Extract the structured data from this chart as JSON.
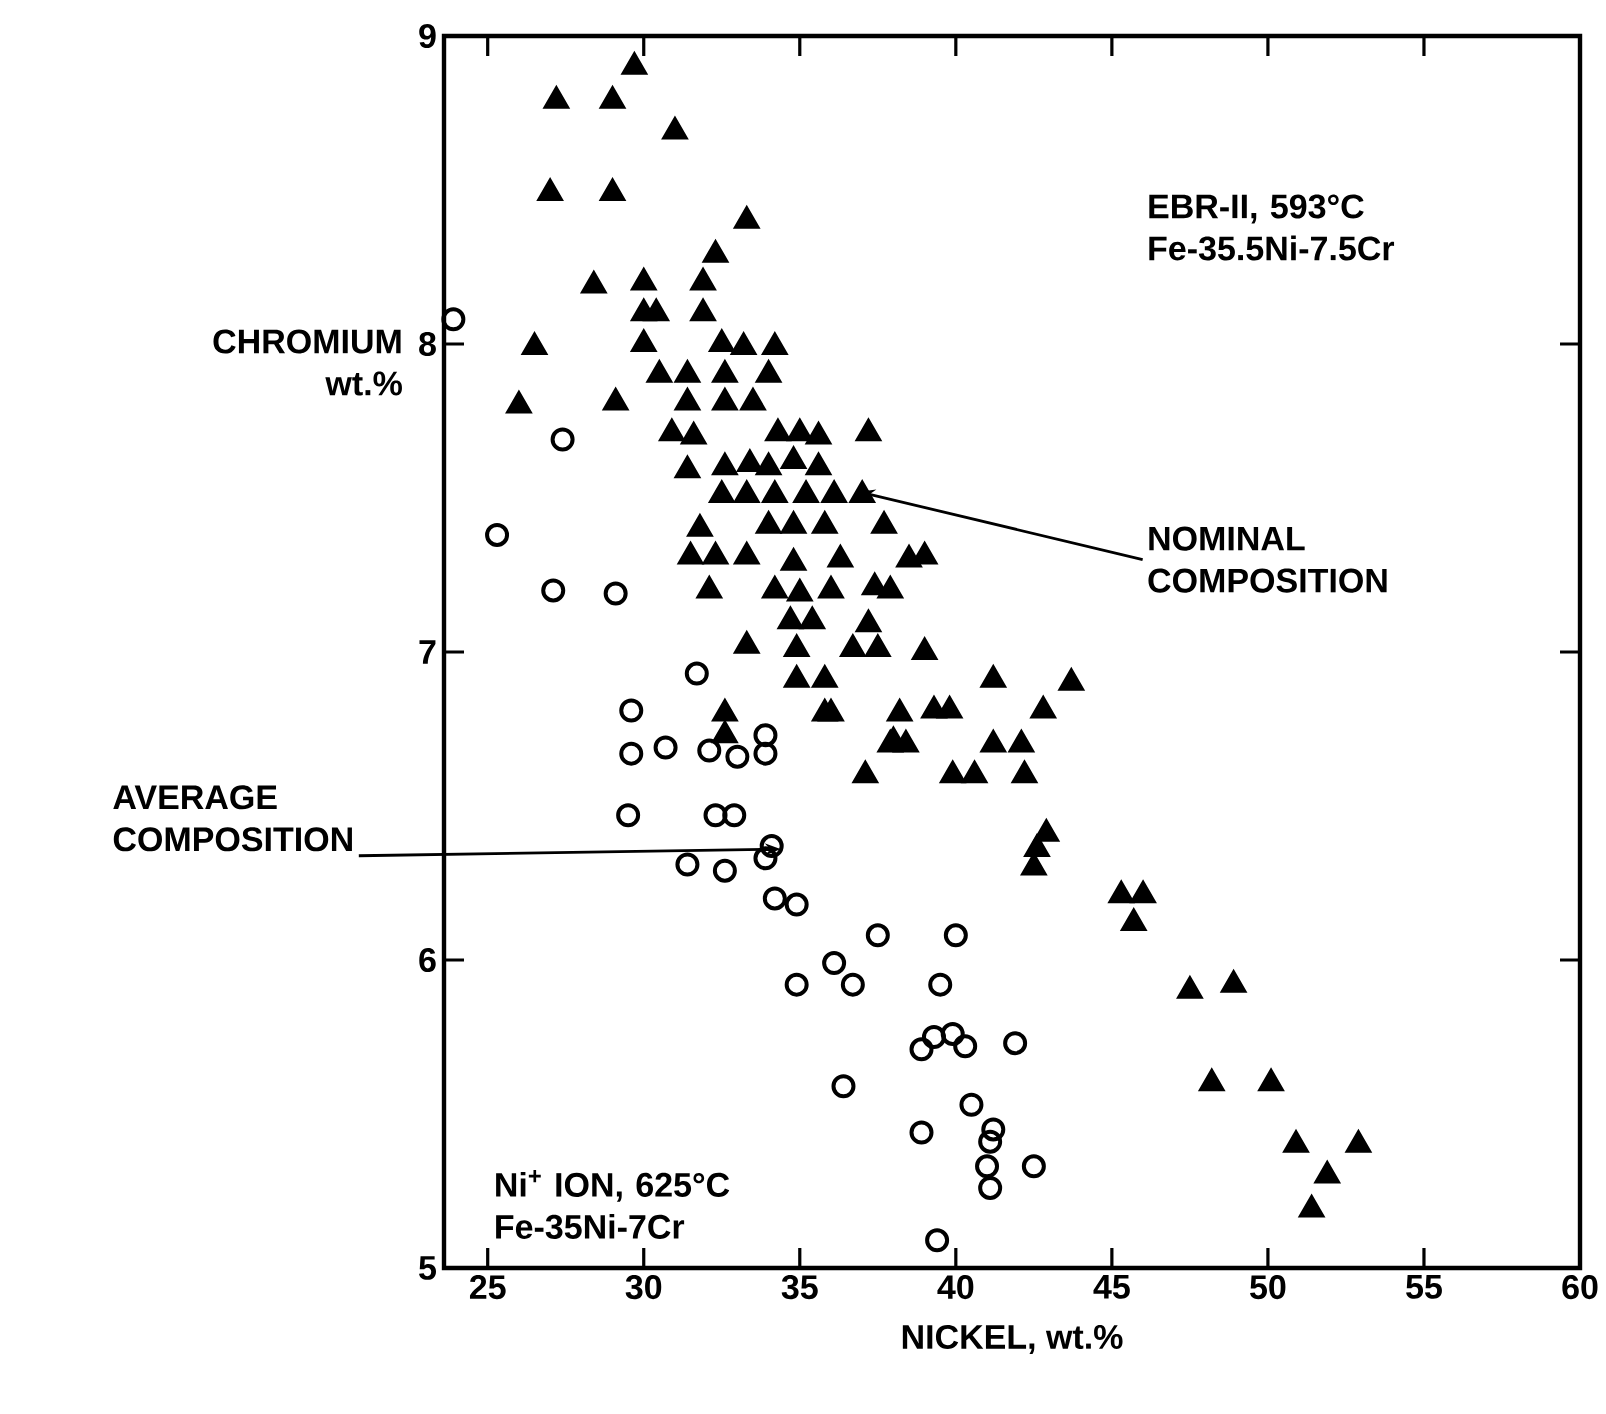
{
  "chart_data": {
    "type": "scatter",
    "xlabel": "NICKEL, wt.%",
    "ylabel": "CHROMIUM wt.%",
    "xlim": [
      23.6,
      60
    ],
    "ylim": [
      5,
      9
    ],
    "xticks": [
      25,
      30,
      35,
      40,
      45,
      50,
      55,
      60
    ],
    "yticks": [
      5,
      6,
      7,
      8,
      9
    ],
    "grid": false,
    "annotations": [
      "EBR-II, 593°C\nFe-35.5Ni-7.5Cr",
      {
        "text": "NOMINAL COMPOSITION",
        "x": 36.9,
        "y": 7.52
      },
      {
        "text": "AVERAGE COMPOSITION",
        "x": 34.4,
        "y": 6.36
      },
      "Ni$^{+}$ ION, 625°C\nFe-35Ni-7Cr"
    ],
    "series": [
      {
        "color": "#000000",
        "marker": "triangle",
        "x": [
          29.7,
          27.2,
          29.0,
          31.0,
          27.0,
          29.0,
          33.3,
          32.3,
          28.4,
          30.0,
          31.9,
          30.0,
          30.4,
          31.9,
          26.5,
          30.0,
          32.5,
          33.2,
          34.2,
          30.5,
          31.4,
          32.6,
          34.0,
          26.0,
          29.1,
          31.4,
          32.6,
          33.5,
          30.9,
          31.6,
          34.3,
          35.0,
          35.6,
          37.2,
          31.4,
          32.6,
          33.4,
          34.0,
          34.8,
          35.6,
          32.5,
          33.3,
          34.2,
          35.2,
          36.1,
          37.0,
          31.8,
          34.0,
          34.8,
          35.8,
          37.7,
          31.5,
          32.3,
          33.3,
          34.8,
          36.3,
          38.5,
          32.1,
          34.2,
          35.0,
          36.0,
          37.4,
          37.9,
          34.7,
          35.4,
          37.2,
          33.3,
          34.9,
          36.7,
          37.5,
          34.9,
          35.8,
          36.0,
          32.6,
          38.2,
          38.0,
          37.1,
          32.6,
          39.0,
          39.0,
          41.2,
          43.7,
          35.8,
          39.3,
          39.8,
          42.8,
          37.9,
          38.4,
          41.2,
          42.1,
          39.9,
          40.6,
          42.2,
          42.9,
          42.6,
          42.5,
          45.3,
          46.0,
          45.7,
          47.5,
          48.9,
          48.2,
          50.1,
          50.9,
          52.9,
          51.9,
          51.4
        ],
        "values": [
          8.9,
          8.79,
          8.79,
          8.69,
          8.49,
          8.49,
          8.4,
          8.29,
          8.19,
          8.2,
          8.2,
          8.1,
          8.1,
          8.1,
          7.99,
          8.0,
          8.0,
          7.99,
          7.99,
          7.9,
          7.9,
          7.9,
          7.9,
          7.8,
          7.81,
          7.81,
          7.81,
          7.81,
          7.71,
          7.7,
          7.71,
          7.71,
          7.7,
          7.71,
          7.59,
          7.6,
          7.61,
          7.6,
          7.62,
          7.6,
          7.51,
          7.51,
          7.51,
          7.51,
          7.51,
          7.51,
          7.4,
          7.41,
          7.41,
          7.41,
          7.41,
          7.31,
          7.31,
          7.31,
          7.29,
          7.3,
          7.3,
          7.2,
          7.2,
          7.19,
          7.2,
          7.21,
          7.2,
          7.1,
          7.1,
          7.09,
          7.02,
          7.01,
          7.01,
          7.01,
          6.91,
          6.91,
          6.8,
          6.8,
          6.8,
          6.71,
          6.6,
          6.73,
          7.31,
          7.0,
          6.91,
          6.9,
          6.8,
          6.81,
          6.81,
          6.81,
          6.7,
          6.7,
          6.7,
          6.7,
          6.6,
          6.6,
          6.6,
          6.41,
          6.36,
          6.3,
          6.21,
          6.21,
          6.12,
          5.9,
          5.92,
          5.6,
          5.6,
          5.4,
          5.4,
          5.3,
          5.19
        ]
      },
      {
        "color": "#000000",
        "marker": "circle",
        "x": [
          23.9,
          27.4,
          25.3,
          27.1,
          29.1,
          31.7,
          29.6,
          29.6,
          30.7,
          32.1,
          33.0,
          33.9,
          33.9,
          29.5,
          32.3,
          32.9,
          34.1,
          33.9,
          31.4,
          32.6,
          34.2,
          34.9,
          37.5,
          36.1,
          36.7,
          34.9,
          36.4,
          40.0,
          39.5,
          38.9,
          39.3,
          39.9,
          40.3,
          41.9,
          40.5,
          41.2,
          41.1,
          38.9,
          41.0,
          42.5,
          41.1,
          39.4
        ],
        "values": [
          8.08,
          7.69,
          7.38,
          7.2,
          7.19,
          6.93,
          6.81,
          6.67,
          6.69,
          6.68,
          6.66,
          6.67,
          6.73,
          6.47,
          6.47,
          6.47,
          6.37,
          6.33,
          6.31,
          6.29,
          6.2,
          6.18,
          6.08,
          5.99,
          5.92,
          5.92,
          5.59,
          6.08,
          5.92,
          5.71,
          5.75,
          5.76,
          5.72,
          5.73,
          5.53,
          5.45,
          5.41,
          5.44,
          5.33,
          5.33,
          5.26,
          5.09
        ]
      }
    ]
  }
}
